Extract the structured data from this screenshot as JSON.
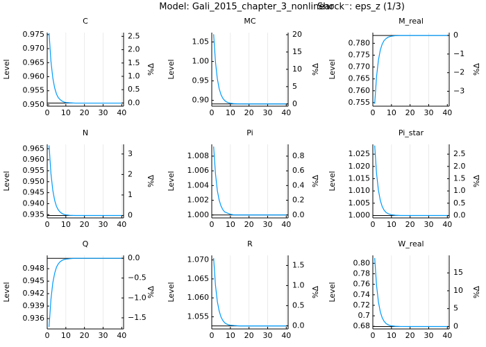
{
  "title": "Model: Gali_2015_chapter_3_nonlinear",
  "shock": "Shock⁻: eps_z  (1/3)",
  "chart_data": [
    {
      "type": "line",
      "title": "C",
      "ylabel": "Level",
      "y2label": "%Δ",
      "grid": true,
      "steady_state_color": "#000000",
      "x": [
        1,
        2,
        3,
        4,
        5,
        6,
        7,
        8,
        9,
        10,
        12,
        15,
        20,
        25,
        30,
        35,
        40
      ],
      "xlim": [
        0,
        41
      ],
      "xticks": [
        0,
        10,
        20,
        30,
        40
      ],
      "ylim": [
        0.9495,
        0.9757
      ],
      "yticks": [
        {
          "value": 0.95,
          "label": "0.950"
        },
        0.955,
        {
          "value": 0.96,
          "label": "0.960"
        },
        0.965,
        {
          "value": 0.97,
          "label": "0.970"
        },
        0.975
      ],
      "y2lim": [
        -0.12,
        2.64
      ],
      "y2ticks": [
        {
          "value": 0,
          "label": "0.0"
        },
        {
          "value": 0.5,
          "label": "0.5"
        },
        {
          "value": 1,
          "label": "1.0"
        },
        {
          "value": 1.5,
          "label": "1.5"
        },
        {
          "value": 2,
          "label": "2.0"
        },
        2.5
      ],
      "steady_state": 0.9506,
      "series": [
        {
          "color": "#009afa",
          "values": [
            0.9755,
            0.9655,
            0.9596,
            0.956,
            0.9538,
            0.9525,
            0.9518,
            0.9513,
            0.951,
            0.9508,
            0.9507,
            0.9506,
            0.9506,
            0.9506,
            0.9506,
            0.9506,
            0.9506
          ]
        }
      ]
    },
    {
      "type": "line",
      "title": "MC",
      "ylabel": "Level",
      "y2label": "%Δ",
      "grid": true,
      "steady_state_color": "#000000",
      "x": [
        1,
        2,
        3,
        4,
        5,
        6,
        7,
        8,
        9,
        10,
        12,
        15,
        20,
        25,
        30,
        35,
        40
      ],
      "xlim": [
        0,
        41
      ],
      "xticks": [
        0,
        10,
        20,
        30,
        40
      ],
      "ylim": [
        0.885,
        1.074
      ],
      "yticks": [
        {
          "value": 0.9,
          "label": "0.90"
        },
        0.95,
        {
          "value": 1,
          "label": "1.00"
        },
        1.05
      ],
      "y2lim": [
        -0.65,
        20.6
      ],
      "y2ticks": [
        0,
        5,
        10,
        15,
        20
      ],
      "steady_state": 0.8908,
      "series": [
        {
          "color": "#009afa",
          "values": [
            1.0698,
            0.9982,
            0.9552,
            0.9295,
            0.9141,
            0.9048,
            0.8992,
            0.8958,
            0.8938,
            0.8926,
            0.8914,
            0.8909,
            0.8908,
            0.8908,
            0.8908,
            0.8908,
            0.8908
          ]
        }
      ]
    },
    {
      "type": "line",
      "title": "M_real",
      "ylabel": "Level",
      "y2label": "%Δ",
      "grid": true,
      "steady_state_color": "#000000",
      "x": [
        1,
        2,
        3,
        4,
        5,
        6,
        7,
        8,
        9,
        10,
        12,
        15,
        20,
        25,
        30,
        35,
        40
      ],
      "xlim": [
        0,
        41
      ],
      "xticks": [
        0,
        10,
        20,
        30,
        40
      ],
      "ylim": [
        0.7535,
        0.7845
      ],
      "yticks": [
        0.755,
        {
          "value": 0.76,
          "label": "0.760"
        },
        0.765,
        {
          "value": 0.77,
          "label": "0.770"
        },
        0.775,
        {
          "value": 0.78,
          "label": "0.780"
        }
      ],
      "y2lim": [
        -3.8,
        0.15
      ],
      "y2ticks": [
        {
          "value": -3,
          "label": "−3"
        },
        {
          "value": -2,
          "label": "−2"
        },
        {
          "value": -1,
          "label": "−1"
        },
        0
      ],
      "steady_state": 0.7833,
      "series": [
        {
          "color": "#009afa",
          "values": [
            0.7545,
            0.766,
            0.7729,
            0.7771,
            0.7796,
            0.7811,
            0.7819,
            0.7825,
            0.7828,
            0.783,
            0.7832,
            0.7833,
            0.7833,
            0.7833,
            0.7833,
            0.7833,
            0.7833
          ]
        }
      ]
    },
    {
      "type": "line",
      "title": "N",
      "ylabel": "Level",
      "y2label": "%Δ",
      "grid": true,
      "steady_state_color": "#000000",
      "x": [
        1,
        2,
        3,
        4,
        5,
        6,
        7,
        8,
        9,
        10,
        12,
        15,
        20,
        25,
        30,
        35,
        40
      ],
      "xlim": [
        0,
        41
      ],
      "xticks": [
        0,
        10,
        20,
        30,
        40
      ],
      "ylim": [
        0.9335,
        0.967
      ],
      "yticks": [
        0.935,
        {
          "value": 0.94,
          "label": "0.940"
        },
        0.945,
        {
          "value": 0.95,
          "label": "0.950"
        },
        0.955,
        {
          "value": 0.96,
          "label": "0.960"
        },
        0.965
      ],
      "y2lim": [
        -0.12,
        3.47
      ],
      "y2ticks": [
        0,
        1,
        2,
        3
      ],
      "steady_state": 0.9346,
      "series": [
        {
          "color": "#009afa",
          "values": [
            0.9665,
            0.9537,
            0.9461,
            0.9415,
            0.9387,
            0.9371,
            0.9361,
            0.9355,
            0.9351,
            0.9349,
            0.9347,
            0.9346,
            0.9346,
            0.9346,
            0.9346,
            0.9346,
            0.9346
          ]
        }
      ]
    },
    {
      "type": "line",
      "title": "Pi",
      "ylabel": "Level",
      "y2label": "%Δ",
      "grid": true,
      "steady_state_color": "#000000",
      "x": [
        1,
        2,
        3,
        4,
        5,
        6,
        7,
        8,
        9,
        10,
        12,
        15,
        20,
        25,
        30,
        35,
        40
      ],
      "xlim": [
        0,
        41
      ],
      "xticks": [
        0,
        10,
        20,
        30,
        40
      ],
      "ylim": [
        0.9996,
        1.0096
      ],
      "yticks": [
        {
          "value": 1,
          "label": "1.000"
        },
        1.002,
        1.004,
        1.006,
        1.008
      ],
      "y2lim": [
        -0.04,
        0.96
      ],
      "y2ticks": [
        {
          "value": 0,
          "label": "0.0"
        },
        0.2,
        0.4,
        0.6,
        0.8
      ],
      "steady_state": 1.0,
      "series": [
        {
          "color": "#009afa",
          "values": [
            1.0093,
            1.0056,
            1.0033,
            1.002,
            1.0012,
            1.0007,
            1.0004,
            1.0003,
            1.0002,
            1.0001,
            1.0,
            1.0,
            1.0,
            1.0,
            1.0,
            1.0,
            1.0
          ]
        }
      ]
    },
    {
      "type": "line",
      "title": "Pi_star",
      "ylabel": "Level",
      "y2label": "%Δ",
      "grid": true,
      "steady_state_color": "#000000",
      "x": [
        1,
        2,
        3,
        4,
        5,
        6,
        7,
        8,
        9,
        10,
        12,
        15,
        20,
        25,
        30,
        35,
        40
      ],
      "xlim": [
        0,
        41
      ],
      "xticks": [
        0,
        10,
        20,
        30,
        40
      ],
      "ylim": [
        0.999,
        1.029
      ],
      "yticks": [
        {
          "value": 1,
          "label": "1.000"
        },
        1.005,
        {
          "value": 1.01,
          "label": "1.010"
        },
        1.015,
        {
          "value": 1.02,
          "label": "1.020"
        },
        1.025
      ],
      "y2lim": [
        -0.1,
        2.9
      ],
      "y2ticks": [
        {
          "value": 0,
          "label": "0.0"
        },
        0.5,
        {
          "value": 1,
          "label": "1.0"
        },
        1.5,
        {
          "value": 2,
          "label": "2.0"
        },
        2.5
      ],
      "steady_state": 1.0,
      "series": [
        {
          "color": "#009afa",
          "values": [
            1.0285,
            1.0171,
            1.0103,
            1.0062,
            1.0037,
            1.0022,
            1.0013,
            1.0008,
            1.0005,
            1.0003,
            1.0001,
            1.0,
            1.0,
            1.0,
            1.0,
            1.0,
            1.0
          ]
        }
      ]
    },
    {
      "type": "line",
      "title": "Q",
      "ylabel": "Level",
      "y2label": "%Δ",
      "grid": true,
      "steady_state_color": "#000000",
      "x": [
        1,
        2,
        3,
        4,
        5,
        6,
        7,
        8,
        9,
        10,
        12,
        15,
        20,
        25,
        30,
        35,
        40
      ],
      "xlim": [
        0,
        41
      ],
      "xticks": [
        0,
        10,
        20,
        30,
        40
      ],
      "ylim": [
        0.9335,
        0.9512
      ],
      "yticks": [
        0.936,
        0.939,
        0.942,
        0.945,
        0.948
      ],
      "y2lim": [
        -1.78,
        0.07
      ],
      "y2ticks": [
        {
          "value": -1.5,
          "label": "−1.5"
        },
        {
          "value": -1,
          "label": "−1.0"
        },
        {
          "value": -0.5,
          "label": "−0.5"
        },
        {
          "value": 0,
          "label": "0.0"
        }
      ],
      "steady_state": 0.9505,
      "series": [
        {
          "color": "#009afa",
          "values": [
            0.934,
            0.9406,
            0.9446,
            0.9469,
            0.9484,
            0.9492,
            0.9497,
            0.95,
            0.9502,
            0.9503,
            0.9504,
            0.9505,
            0.9505,
            0.9505,
            0.9505,
            0.9505,
            0.9505
          ]
        }
      ]
    },
    {
      "type": "line",
      "title": "R",
      "ylabel": "Level",
      "y2label": "%Δ",
      "grid": true,
      "steady_state_color": "#000000",
      "x": [
        1,
        2,
        3,
        4,
        5,
        6,
        7,
        8,
        9,
        10,
        12,
        15,
        20,
        25,
        30,
        35,
        40
      ],
      "xlim": [
        0,
        41
      ],
      "xticks": [
        0,
        10,
        20,
        30,
        40
      ],
      "ylim": [
        1.0518,
        1.0712
      ],
      "yticks": [
        1.055,
        {
          "value": 1.06,
          "label": "1.060"
        },
        1.065,
        {
          "value": 1.07,
          "label": "1.070"
        }
      ],
      "y2lim": [
        -0.08,
        1.75
      ],
      "y2ticks": [
        {
          "value": 0,
          "label": "0.0"
        },
        0.5,
        {
          "value": 1,
          "label": "1.0"
        },
        1.5
      ],
      "steady_state": 1.0526,
      "series": [
        {
          "color": "#009afa",
          "values": [
            1.0705,
            1.0633,
            1.059,
            1.0565,
            1.0549,
            1.054,
            1.0534,
            1.0531,
            1.0529,
            1.0528,
            1.0527,
            1.0526,
            1.0526,
            1.0526,
            1.0526,
            1.0526,
            1.0526
          ]
        }
      ]
    },
    {
      "type": "line",
      "title": "W_real",
      "ylabel": "Level",
      "y2label": "%Δ",
      "grid": true,
      "steady_state_color": "#000000",
      "x": [
        1,
        2,
        3,
        4,
        5,
        6,
        7,
        8,
        9,
        10,
        12,
        15,
        20,
        25,
        30,
        35,
        40
      ],
      "xlim": [
        0,
        41
      ],
      "xticks": [
        0,
        10,
        20,
        30,
        40
      ],
      "ylim": [
        0.675,
        0.815
      ],
      "yticks": [
        0.68,
        0.7,
        0.72,
        0.74,
        0.76,
        0.78,
        {
          "value": 0.8,
          "label": "0.80"
        }
      ],
      "y2lim": [
        -0.7,
        19.9
      ],
      "y2ticks": [
        0,
        5,
        10,
        15
      ],
      "steady_state": 0.6796,
      "series": [
        {
          "color": "#009afa",
          "values": [
            0.81,
            0.7578,
            0.7265,
            0.7078,
            0.6966,
            0.6898,
            0.6857,
            0.6833,
            0.6818,
            0.6809,
            0.6801,
            0.6797,
            0.6796,
            0.6796,
            0.6796,
            0.6796,
            0.6796
          ]
        }
      ]
    }
  ]
}
